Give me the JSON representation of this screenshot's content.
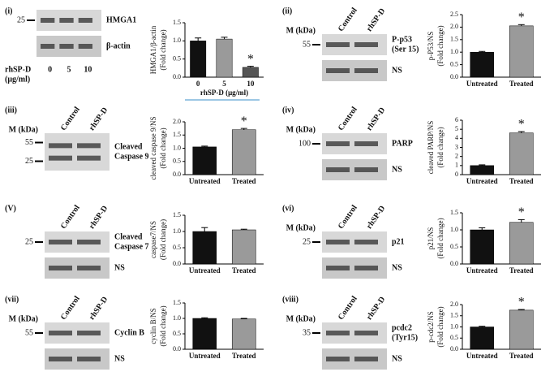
{
  "chart_data": [
    {
      "type": "bar",
      "ylabel": [
        "HMGA1/β-actin",
        "(Fold change)"
      ],
      "xlabel": "rhSP-D (μg/ml)",
      "categories": [
        "0",
        "5",
        "10"
      ],
      "values": [
        1.0,
        1.05,
        0.27
      ],
      "errors": [
        0.08,
        0.05,
        0.03
      ],
      "colors": [
        "#111111",
        "#9a9a9a",
        "#555555"
      ],
      "ylim": [
        0,
        1.5
      ],
      "yticks": [
        {
          "value": 0,
          "label": "0.0"
        },
        {
          "value": 0.5,
          "label": "0.5"
        },
        {
          "value": 1,
          "label": "1.0"
        },
        {
          "value": 1.5,
          "label": "1.5"
        }
      ],
      "annotations": [
        {
          "text": "*",
          "category": "10"
        }
      ]
    },
    {
      "type": "bar",
      "ylabel": [
        "p-P53/NS",
        "(Fold change)"
      ],
      "categories": [
        "Untreated",
        "Treated"
      ],
      "values": [
        1.0,
        2.05
      ],
      "errors": [
        0.03,
        0.05
      ],
      "colors": [
        "#111111",
        "#9a9a9a"
      ],
      "ylim": [
        0,
        2.5
      ],
      "yticks": [
        {
          "value": 0,
          "label": "0.0"
        },
        {
          "value": 0.5,
          "label": "0.5"
        },
        {
          "value": 1,
          "label": "1.0"
        },
        {
          "value": 1.5,
          "label": "1.5"
        },
        {
          "value": 2,
          "label": "2.0"
        },
        {
          "value": 2.5,
          "label": "2.5"
        }
      ],
      "annotations": [
        {
          "text": "*",
          "category": "Treated"
        }
      ]
    },
    {
      "type": "bar",
      "ylabel": [
        "cleaved caspase 9/NS",
        "(Fold change)"
      ],
      "categories": [
        "Untreated",
        "Treated"
      ],
      "values": [
        1.05,
        1.7
      ],
      "errors": [
        0.03,
        0.05
      ],
      "colors": [
        "#111111",
        "#9a9a9a"
      ],
      "ylim": [
        0,
        2
      ],
      "yticks": [
        {
          "value": 0,
          "label": "0.0"
        },
        {
          "value": 0.5,
          "label": "0.5"
        },
        {
          "value": 1,
          "label": "1.0"
        },
        {
          "value": 1.5,
          "label": "1.5"
        },
        {
          "value": 2,
          "label": "2.0"
        }
      ],
      "annotations": [
        {
          "text": "*",
          "category": "Treated"
        }
      ]
    },
    {
      "type": "bar",
      "ylabel": [
        "cleaved PARP/NS",
        "(Fold change)"
      ],
      "categories": [
        "Untreated",
        "Treated"
      ],
      "values": [
        1.0,
        4.6
      ],
      "errors": [
        0.08,
        0.15
      ],
      "colors": [
        "#111111",
        "#9a9a9a"
      ],
      "ylim": [
        0,
        6
      ],
      "yticks": [
        0,
        1,
        2,
        3,
        4,
        5,
        6
      ],
      "annotations": [
        {
          "text": "*",
          "category": "Treated"
        }
      ]
    },
    {
      "type": "bar",
      "ylabel": [
        "caspase7/NS",
        "(Fold change)"
      ],
      "categories": [
        "Untreated",
        "Treated"
      ],
      "values": [
        1.0,
        1.05
      ],
      "errors": [
        0.12,
        0.02
      ],
      "colors": [
        "#111111",
        "#9a9a9a"
      ],
      "ylim": [
        0,
        1.5
      ],
      "yticks": [
        {
          "value": 0,
          "label": "0.0"
        },
        {
          "value": 0.5,
          "label": "0.5"
        },
        {
          "value": 1,
          "label": "1.0"
        },
        {
          "value": 1.5,
          "label": "1.5"
        }
      ]
    },
    {
      "type": "bar",
      "ylabel": [
        "p21/NS",
        "(Fold change)"
      ],
      "categories": [
        "Untreated",
        "Treated"
      ],
      "values": [
        1.0,
        1.22
      ],
      "errors": [
        0.06,
        0.08
      ],
      "colors": [
        "#111111",
        "#9a9a9a"
      ],
      "ylim": [
        0,
        1.5
      ],
      "yticks": [
        {
          "value": 0,
          "label": "0.0"
        },
        {
          "value": 0.5,
          "label": "0.5"
        },
        {
          "value": 1,
          "label": "1.0"
        },
        {
          "value": 1.5,
          "label": "1.5"
        }
      ],
      "annotations": [
        {
          "text": "*",
          "category": "Treated"
        }
      ]
    },
    {
      "type": "bar",
      "ylabel": [
        "cyclin B/NS",
        "(Fold change)"
      ],
      "categories": [
        "Untreated",
        "Treated"
      ],
      "values": [
        1.0,
        0.98
      ],
      "errors": [
        0.02,
        0.02
      ],
      "colors": [
        "#111111",
        "#9a9a9a"
      ],
      "ylim": [
        0,
        1.5
      ],
      "yticks": [
        {
          "value": 0,
          "label": "0.0"
        },
        {
          "value": 0.5,
          "label": "0.5"
        },
        {
          "value": 1,
          "label": "1.0"
        },
        {
          "value": 1.5,
          "label": "1.5"
        }
      ]
    },
    {
      "type": "bar",
      "ylabel": [
        "p-cdc2/NS",
        "(Fold change)"
      ],
      "categories": [
        "Untreated",
        "Treated"
      ],
      "values": [
        1.0,
        1.75
      ],
      "errors": [
        0.03,
        0.03
      ],
      "colors": [
        "#111111",
        "#9a9a9a"
      ],
      "ylim": [
        0,
        2
      ],
      "yticks": [
        {
          "value": 0,
          "label": "0.0"
        },
        {
          "value": 0.5,
          "label": "0.5"
        },
        {
          "value": 1,
          "label": "1.0"
        },
        {
          "value": 1.5,
          "label": "1.5"
        },
        {
          "value": 2,
          "label": "2.0"
        }
      ],
      "annotations": [
        {
          "text": "*",
          "category": "Treated"
        }
      ]
    }
  ],
  "blots": [
    {
      "label": "(i)",
      "treatment": [
        "rhSP-D",
        "(μg/ml)"
      ],
      "lanes": [
        "0",
        "5",
        "10"
      ],
      "markers": [
        "25"
      ],
      "proteins": [
        [
          "HMGA1"
        ],
        [
          "β-actin"
        ]
      ]
    },
    {
      "label": "(ii)",
      "unit": "M (kDa)",
      "lanes": [
        "Control",
        "rhSP-D"
      ],
      "markers": [
        "55"
      ],
      "proteins": [
        [
          "P-p53",
          "(Ser 15)"
        ],
        [
          "NS"
        ]
      ]
    },
    {
      "label": "(iii)",
      "unit": "M (kDa)",
      "lanes": [
        "Control",
        "rhSP-D"
      ],
      "markers": [
        "55",
        "25"
      ],
      "proteins": [
        [
          "Cleaved",
          "Caspase 9"
        ]
      ]
    },
    {
      "label": "(iv)",
      "unit": "M (kDa)",
      "lanes": [
        "Control",
        "rhSP-D"
      ],
      "markers": [
        "100"
      ],
      "proteins": [
        [
          "PARP"
        ],
        [
          "NS"
        ]
      ]
    },
    {
      "label": "(V)",
      "lanes": [
        "Control",
        "rhSP-D"
      ],
      "markers": [
        "25"
      ],
      "proteins": [
        [
          "Cleaved",
          "Caspase 7"
        ],
        [
          "NS"
        ]
      ]
    },
    {
      "label": "(vi)",
      "unit": "M (kDa)",
      "lanes": [
        "Control",
        "rhSP-D"
      ],
      "markers": [
        "25"
      ],
      "proteins": [
        [
          "p21"
        ],
        [
          "NS"
        ]
      ]
    },
    {
      "label": "(vii)",
      "unit": "M (kDa)",
      "lanes": [
        "Control",
        "rhSP-D"
      ],
      "markers": [
        "55"
      ],
      "proteins": [
        [
          "Cyclin B"
        ],
        [
          "NS"
        ]
      ]
    },
    {
      "label": "(viii)",
      "unit": "M (kDa)",
      "lanes": [
        "Control",
        "rhSP-D"
      ],
      "markers": [
        "35"
      ],
      "proteins": [
        [
          "pcdc2",
          "(Tyr15)"
        ],
        [
          "NS"
        ]
      ]
    }
  ]
}
